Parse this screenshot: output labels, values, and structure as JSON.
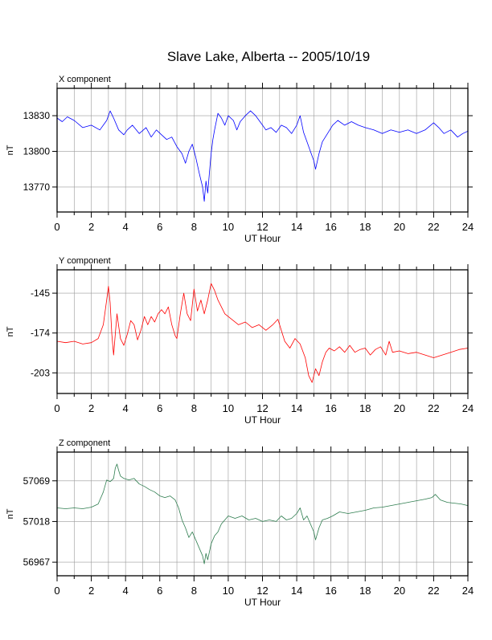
{
  "title": "Slave Lake, Alberta -- 2005/10/19",
  "chart_data": [
    {
      "type": "line",
      "panel_title": "X component",
      "xlabel": "UT Hour",
      "ylabel": "nT",
      "xlim": [
        0,
        24
      ],
      "ylim": [
        13749,
        13853
      ],
      "x_ticks": [
        0,
        2,
        4,
        6,
        8,
        10,
        12,
        14,
        16,
        18,
        20,
        22,
        24
      ],
      "y_ticks": [
        13770,
        13800,
        13830
      ],
      "grid": true,
      "series": [
        {
          "color": "#0000ff",
          "x": [
            0,
            0.3,
            0.6,
            1.0,
            1.5,
            2.0,
            2.5,
            2.9,
            3.1,
            3.3,
            3.6,
            3.9,
            4.1,
            4.4,
            4.8,
            5.2,
            5.5,
            5.8,
            6.1,
            6.4,
            6.7,
            7.0,
            7.3,
            7.5,
            7.7,
            7.9,
            8.1,
            8.3,
            8.5,
            8.6,
            8.7,
            8.8,
            8.9,
            9.0,
            9.1,
            9.2,
            9.4,
            9.6,
            9.8,
            10.0,
            10.3,
            10.5,
            10.7,
            11.0,
            11.3,
            11.6,
            11.9,
            12.2,
            12.5,
            12.8,
            13.1,
            13.4,
            13.7,
            14.0,
            14.2,
            14.4,
            14.6,
            14.8,
            15.0,
            15.1,
            15.3,
            15.5,
            15.8,
            16.1,
            16.4,
            16.8,
            17.2,
            17.6,
            18.0,
            18.5,
            19.0,
            19.5,
            20.0,
            20.5,
            21.0,
            21.5,
            22.0,
            22.3,
            22.6,
            23.0,
            23.4,
            23.7,
            24.0
          ],
          "values": [
            13828,
            13825,
            13829,
            13826,
            13820,
            13822,
            13818,
            13826,
            13834,
            13828,
            13818,
            13814,
            13818,
            13822,
            13815,
            13820,
            13812,
            13818,
            13814,
            13810,
            13812,
            13804,
            13798,
            13790,
            13800,
            13806,
            13795,
            13782,
            13770,
            13758,
            13775,
            13765,
            13782,
            13798,
            13810,
            13818,
            13832,
            13828,
            13822,
            13830,
            13826,
            13818,
            13825,
            13830,
            13834,
            13830,
            13824,
            13818,
            13820,
            13816,
            13822,
            13820,
            13815,
            13822,
            13830,
            13816,
            13808,
            13800,
            13792,
            13785,
            13798,
            13808,
            13815,
            13822,
            13826,
            13822,
            13825,
            13822,
            13820,
            13818,
            13815,
            13818,
            13816,
            13818,
            13815,
            13818,
            13824,
            13820,
            13815,
            13818,
            13812,
            13815,
            13817
          ]
        }
      ]
    },
    {
      "type": "line",
      "panel_title": "Y component",
      "xlabel": "UT Hour",
      "ylabel": "nT",
      "xlim": [
        0,
        24
      ],
      "ylim": [
        -218,
        -128
      ],
      "x_ticks": [
        0,
        2,
        4,
        6,
        8,
        10,
        12,
        14,
        16,
        18,
        20,
        22,
        24
      ],
      "y_ticks": [
        -203,
        -174,
        -145
      ],
      "grid": true,
      "series": [
        {
          "color": "#ff0000",
          "x": [
            0,
            0.5,
            1.0,
            1.5,
            2.0,
            2.4,
            2.7,
            2.9,
            3.0,
            3.1,
            3.2,
            3.3,
            3.4,
            3.5,
            3.7,
            3.9,
            4.1,
            4.3,
            4.5,
            4.7,
            4.9,
            5.1,
            5.3,
            5.5,
            5.7,
            5.9,
            6.1,
            6.3,
            6.5,
            6.7,
            6.9,
            7.0,
            7.2,
            7.4,
            7.6,
            7.8,
            8.0,
            8.2,
            8.4,
            8.6,
            8.8,
            9.0,
            9.2,
            9.4,
            9.6,
            9.8,
            10.0,
            10.3,
            10.6,
            11.0,
            11.4,
            11.8,
            12.2,
            12.6,
            12.9,
            13.1,
            13.3,
            13.6,
            13.9,
            14.2,
            14.5,
            14.7,
            14.9,
            15.1,
            15.3,
            15.5,
            15.7,
            15.9,
            16.2,
            16.5,
            16.8,
            17.1,
            17.4,
            17.7,
            18.0,
            18.3,
            18.6,
            18.9,
            19.2,
            19.4,
            19.6,
            20.0,
            20.5,
            21.0,
            21.5,
            22.0,
            22.5,
            23.0,
            23.5,
            24.0
          ],
          "values": [
            -180,
            -181,
            -180,
            -182,
            -181,
            -178,
            -168,
            -150,
            -140,
            -152,
            -175,
            -190,
            -175,
            -160,
            -178,
            -183,
            -175,
            -165,
            -168,
            -179,
            -172,
            -162,
            -168,
            -162,
            -166,
            -160,
            -157,
            -160,
            -155,
            -168,
            -176,
            -178,
            -160,
            -145,
            -160,
            -165,
            -142,
            -158,
            -150,
            -160,
            -150,
            -138,
            -143,
            -150,
            -155,
            -160,
            -162,
            -165,
            -168,
            -166,
            -170,
            -168,
            -172,
            -168,
            -164,
            -172,
            -180,
            -185,
            -178,
            -182,
            -192,
            -205,
            -210,
            -200,
            -205,
            -195,
            -188,
            -185,
            -187,
            -184,
            -188,
            -183,
            -188,
            -186,
            -185,
            -190,
            -186,
            -184,
            -190,
            -180,
            -188,
            -187,
            -189,
            -188,
            -190,
            -192,
            -190,
            -188,
            -186,
            -185
          ]
        }
      ]
    },
    {
      "type": "line",
      "panel_title": "Z component",
      "xlabel": "UT Hour",
      "ylabel": "nT",
      "xlim": [
        0,
        24
      ],
      "ylim": [
        56950,
        57105
      ],
      "x_ticks": [
        0,
        2,
        4,
        6,
        8,
        10,
        12,
        14,
        16,
        18,
        20,
        22,
        24
      ],
      "y_ticks": [
        56967,
        57018,
        57069
      ],
      "grid": true,
      "series": [
        {
          "color": "#2e7d4f",
          "x": [
            0,
            0.5,
            1.0,
            1.5,
            2.0,
            2.4,
            2.7,
            2.9,
            3.1,
            3.3,
            3.4,
            3.5,
            3.6,
            3.7,
            3.9,
            4.2,
            4.5,
            4.8,
            5.1,
            5.4,
            5.7,
            6.0,
            6.3,
            6.6,
            6.9,
            7.1,
            7.3,
            7.5,
            7.7,
            7.9,
            8.1,
            8.3,
            8.5,
            8.6,
            8.7,
            8.8,
            8.9,
            9.0,
            9.2,
            9.4,
            9.6,
            9.8,
            10.0,
            10.4,
            10.8,
            11.2,
            11.6,
            12.0,
            12.4,
            12.8,
            13.1,
            13.4,
            13.7,
            14.0,
            14.2,
            14.4,
            14.6,
            14.8,
            15.0,
            15.1,
            15.3,
            15.5,
            15.8,
            16.1,
            16.5,
            17.0,
            17.5,
            18.0,
            18.5,
            19.0,
            19.5,
            20.0,
            20.5,
            21.0,
            21.5,
            21.9,
            22.1,
            22.4,
            22.8,
            23.2,
            23.6,
            24.0
          ],
          "values": [
            57035,
            57034,
            57035,
            57034,
            57036,
            57040,
            57055,
            57070,
            57068,
            57072,
            57085,
            57090,
            57082,
            57075,
            57072,
            57070,
            57072,
            57065,
            57062,
            57058,
            57055,
            57050,
            57048,
            57050,
            57045,
            57035,
            57020,
            57010,
            56998,
            57005,
            56995,
            56985,
            56975,
            56965,
            56978,
            56970,
            56980,
            56990,
            57000,
            57005,
            57015,
            57020,
            57025,
            57022,
            57025,
            57020,
            57022,
            57018,
            57020,
            57018,
            57025,
            57020,
            57022,
            57028,
            57035,
            57020,
            57025,
            57015,
            57005,
            56995,
            57010,
            57020,
            57022,
            57025,
            57030,
            57028,
            57030,
            57032,
            57035,
            57036,
            57038,
            57040,
            57042,
            57044,
            57046,
            57048,
            57052,
            57045,
            57042,
            57041,
            57040,
            57038
          ]
        }
      ]
    }
  ]
}
